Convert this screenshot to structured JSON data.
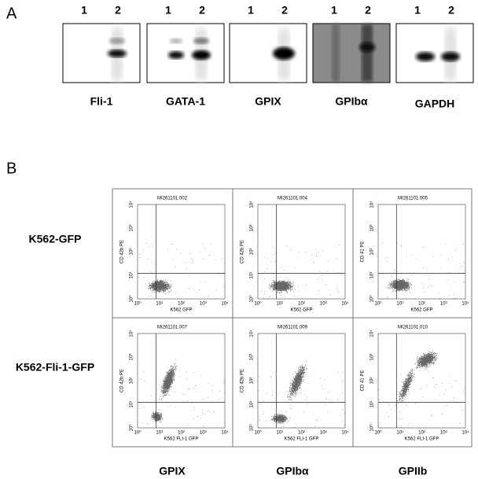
{
  "panel_a": {
    "label": "A",
    "lane_labels": [
      "1",
      "2"
    ],
    "blots": [
      {
        "name": "Fli-1"
      },
      {
        "name": "GATA-1"
      },
      {
        "name": "GPIX"
      },
      {
        "name": "GPIbα"
      },
      {
        "name": "GAPDH"
      }
    ]
  },
  "panel_b": {
    "label": "B",
    "rows": [
      "K562-GFP",
      "K562-Fli-1-GFP"
    ],
    "columns": [
      "GPIX",
      "GPIbα",
      "GPIIb"
    ],
    "tick_labels": [
      "10⁰",
      "10¹",
      "10²",
      "10³",
      "10⁴"
    ],
    "plots": [
      [
        {
          "id": "MI261101.002",
          "y_label": "CD 42b PE",
          "x_label": "K562 GFP"
        },
        {
          "id": "MI261101.004",
          "y_label": "CD 42b PE",
          "x_label": "K562 GFP"
        },
        {
          "id": "MI261101.005",
          "y_label": "CD 41 PE",
          "x_label": "K562 GFP"
        }
      ],
      [
        {
          "id": "MI261101.007",
          "y_label": "CD 42b PE",
          "x_label": "K562 FLI-1 GFP"
        },
        {
          "id": "MI261101.009",
          "y_label": "CD 42b PE",
          "x_label": "K562 FLI-1 GFP"
        },
        {
          "id": "MI261101.010",
          "y_label": "CD 41 PE",
          "x_label": "K562 FLI-1 GFP"
        }
      ]
    ]
  }
}
